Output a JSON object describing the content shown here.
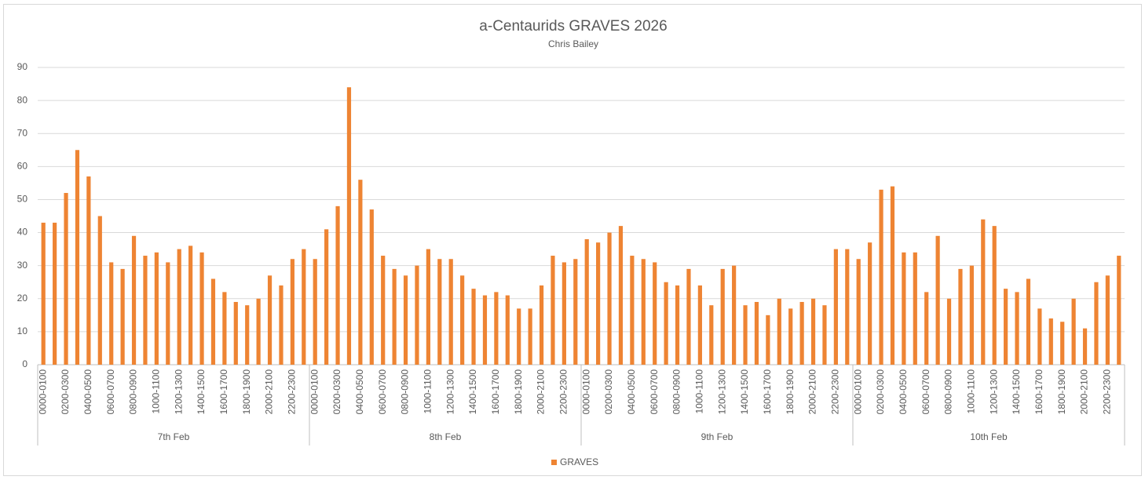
{
  "chart_data": {
    "type": "bar",
    "title": "a-Centaurids GRAVES 2026",
    "subtitle": "Chris Bailey",
    "groups": [
      "7th Feb",
      "8th Feb",
      "9th Feb",
      "10th Feb"
    ],
    "categories": [
      "0000-0100",
      null,
      "0200-0300",
      null,
      "0400-0500",
      null,
      "0600-0700",
      null,
      "0800-0900",
      null,
      "1000-1100",
      null,
      "1200-1300",
      null,
      "1400-1500",
      null,
      "1600-1700",
      null,
      "1800-1900",
      null,
      "2000-2100",
      null,
      "2200-2300",
      null,
      "0000-0100",
      null,
      "0200-0300",
      null,
      "0400-0500",
      null,
      "0600-0700",
      null,
      "0800-0900",
      null,
      "1000-1100",
      null,
      "1200-1300",
      null,
      "1400-1500",
      null,
      "1600-1700",
      null,
      "1800-1900",
      null,
      "2000-2100",
      null,
      "2200-2300",
      null,
      "0000-0100",
      null,
      "0200-0300",
      null,
      "0400-0500",
      null,
      "0600-0700",
      null,
      "0800-0900",
      null,
      "1000-1100",
      null,
      "1200-1300",
      null,
      "1400-1500",
      null,
      "1600-1700",
      null,
      "1800-1900",
      null,
      "2000-2100",
      null,
      "2200-2300",
      null,
      "0000-0100",
      null,
      "0200-0300",
      null,
      "0400-0500",
      null,
      "0600-0700",
      null,
      "0800-0900",
      null,
      "1000-1100",
      null,
      "1200-1300",
      null,
      "1400-1500",
      null,
      "1600-1700",
      null,
      "1800-1900",
      null,
      "2000-2100",
      null,
      "2200-2300",
      null
    ],
    "series": [
      {
        "name": "GRAVES",
        "color": "#ee8433",
        "values": [
          43,
          43,
          52,
          65,
          57,
          45,
          31,
          29,
          39,
          33,
          34,
          31,
          35,
          36,
          34,
          26,
          22,
          19,
          18,
          20,
          27,
          24,
          32,
          35,
          32,
          41,
          48,
          84,
          56,
          47,
          33,
          29,
          27,
          30,
          35,
          32,
          32,
          27,
          23,
          21,
          22,
          21,
          17,
          17,
          24,
          33,
          31,
          32,
          38,
          37,
          40,
          42,
          33,
          32,
          31,
          25,
          24,
          29,
          24,
          18,
          29,
          30,
          18,
          19,
          15,
          20,
          17,
          19,
          20,
          18,
          35,
          35,
          32,
          37,
          53,
          54,
          34,
          34,
          22,
          39,
          20,
          29,
          30,
          44,
          42,
          23,
          22,
          26,
          17,
          14,
          13,
          20,
          11,
          25,
          27,
          33
        ]
      }
    ],
    "ylim": [
      0,
      90
    ],
    "yticks": [
      0,
      10,
      20,
      30,
      40,
      50,
      60,
      70,
      80,
      90
    ],
    "grid": true,
    "legend": "bottom"
  }
}
